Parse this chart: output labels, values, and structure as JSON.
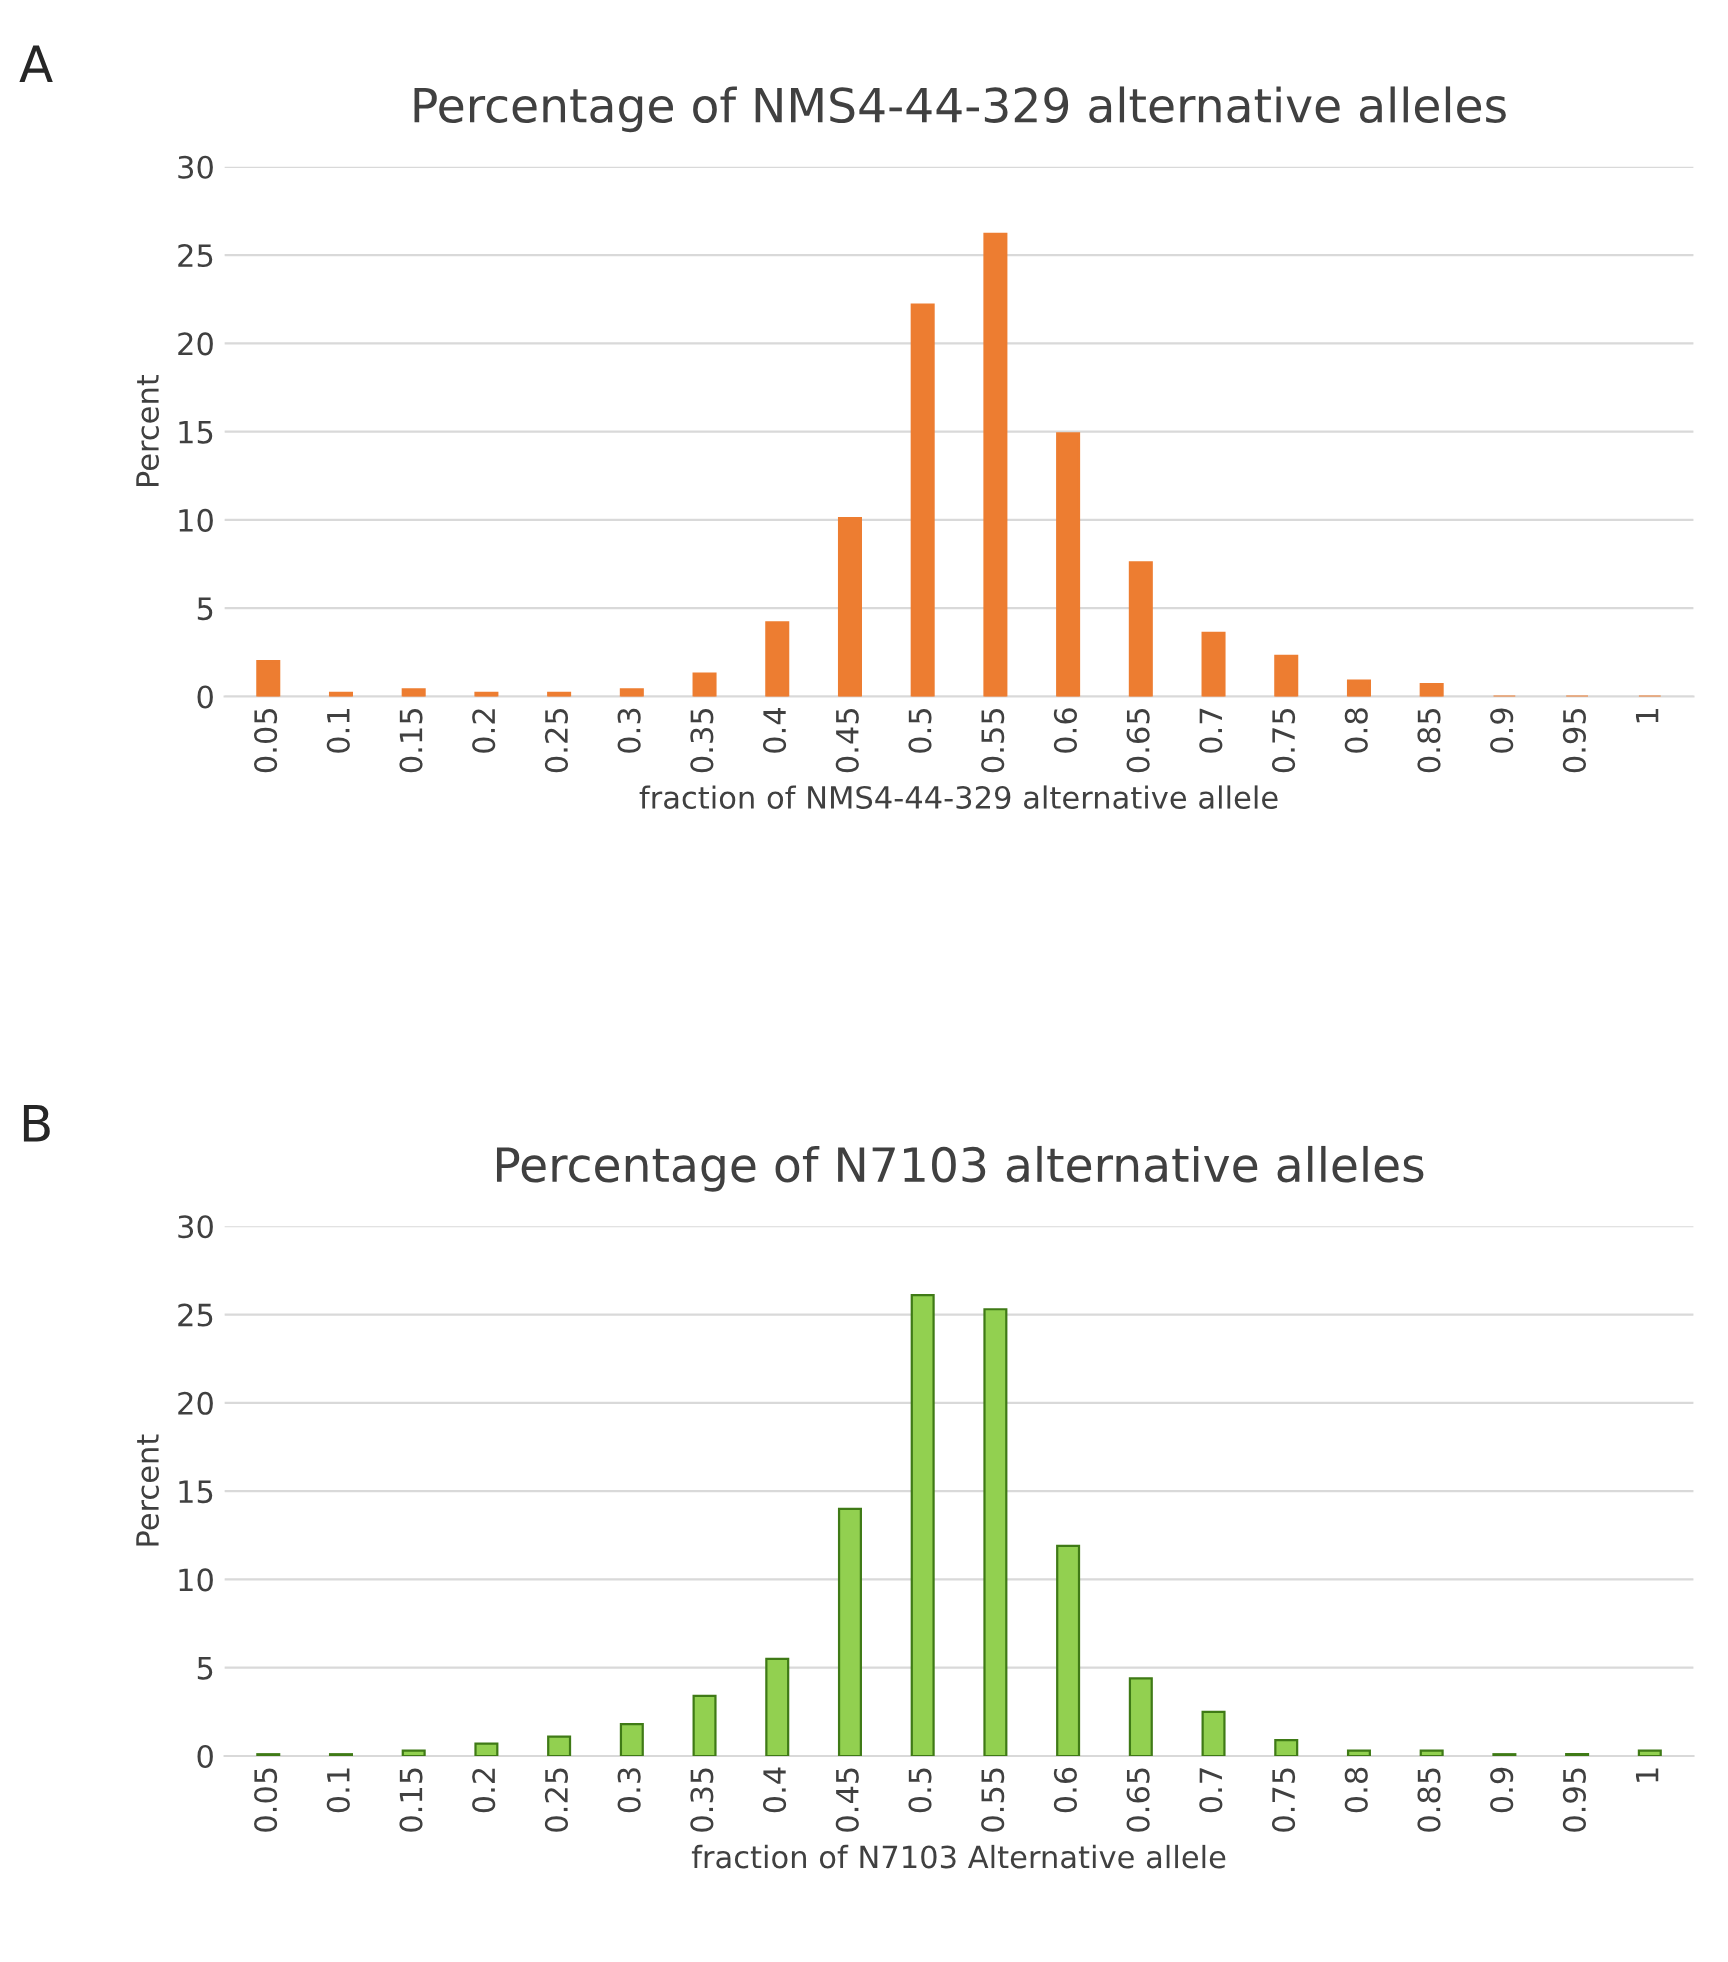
{
  "chart_data": [
    {
      "type": "bar",
      "title": "Percentage of NMS4-44-329 alternative alleles",
      "xlabel": "fraction of NMS4-44-329 alternative allele",
      "ylabel": "Percent",
      "annotations": [
        "A"
      ],
      "categories": [
        "0.05",
        "0.1",
        "0.15",
        "0.2",
        "0.25",
        "0.3",
        "0.35",
        "0.4",
        "0.45",
        "0.5",
        "0.55",
        "0.6",
        "0.65",
        "0.7",
        "0.75",
        "0.8",
        "0.85",
        "0.9",
        "0.95",
        "1"
      ],
      "series": [
        {
          "color": "#ed7d31",
          "values": [
            2.0,
            0.2,
            0.4,
            0.2,
            0.2,
            0.4,
            1.3,
            4.2,
            10.1,
            22.2,
            26.2,
            14.9,
            7.6,
            3.6,
            2.3,
            0.9,
            0.7,
            0,
            0,
            0
          ]
        }
      ],
      "ylim": [
        0,
        30
      ],
      "yticks": [
        0,
        5,
        10,
        15,
        20,
        25,
        30
      ],
      "grid": "y",
      "legend": false
    },
    {
      "type": "bar",
      "title": "Percentage of N7103 alternative alleles",
      "xlabel": "fraction of N7103 Alternative allele",
      "ylabel": "Percent",
      "annotations": [
        "B"
      ],
      "categories": [
        "0.05",
        "0.1",
        "0.15",
        "0.2",
        "0.25",
        "0.3",
        "0.35",
        "0.4",
        "0.45",
        "0.5",
        "0.55",
        "0.6",
        "0.65",
        "0.7",
        "0.75",
        "0.8",
        "0.85",
        "0.9",
        "0.95",
        "1"
      ],
      "series": [
        {
          "color": "#92d050",
          "values": [
            0.1,
            0.1,
            0.3,
            0.7,
            1.1,
            1.8,
            3.4,
            5.5,
            14.0,
            26.1,
            25.3,
            11.9,
            4.4,
            2.5,
            0.9,
            0.3,
            0.3,
            0.1,
            0.1,
            0.3
          ]
        }
      ],
      "ylim": [
        0,
        30
      ],
      "yticks": [
        0,
        5,
        10,
        15,
        20,
        25,
        30
      ],
      "grid": "y",
      "legend": false
    }
  ]
}
